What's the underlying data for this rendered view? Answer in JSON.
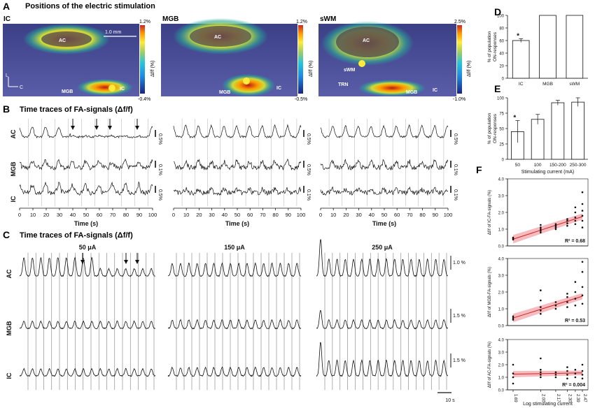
{
  "panels": {
    "A": {
      "letter": "A",
      "title": "Positions of the electric stimulation",
      "subpanels": [
        {
          "label": "IC",
          "scale_top": "1.2%",
          "scale_bottom": "-0.4%",
          "regions": [
            "AC",
            "MGB",
            "IC"
          ],
          "extra": "1.0 mm"
        },
        {
          "label": "MGB",
          "scale_top": "1.2%",
          "scale_bottom": "-0.5%",
          "regions": [
            "AC",
            "MGB",
            "IC"
          ]
        },
        {
          "label": "sWM",
          "scale_top": "2.5%",
          "scale_bottom": "-1.0%",
          "regions": [
            "AC",
            "sWM",
            "TRN",
            "MGB",
            "IC"
          ]
        }
      ],
      "colorbar_label": "Δf/f (%)",
      "axes_letters": [
        "L",
        "C"
      ]
    },
    "B": {
      "letter": "B",
      "title": "Time traces of FA-signals (Δf/f)",
      "rows": [
        "AC",
        "MGB",
        "IC"
      ],
      "scales": [
        [
          "0.5%",
          "0.1%",
          "0.5%"
        ],
        [
          "0.5%",
          "0.5%",
          "0.1%"
        ],
        [
          "0.5%",
          "0.1%",
          "0.1%"
        ]
      ],
      "xlabel": "Time (s)",
      "ticks": [
        "0",
        "10",
        "20",
        "30",
        "40",
        "50",
        "60",
        "70",
        "80",
        "90",
        "100"
      ]
    },
    "C": {
      "letter": "C",
      "title": "Time traces of FA-signals (Δf/f)",
      "columns": [
        "50 μA",
        "150 μA",
        "250 μA"
      ],
      "rows": [
        "AC",
        "MGB",
        "IC"
      ],
      "scales": [
        "1.0 %",
        "1.5 %",
        "1.5 %"
      ],
      "time_scale": "10 s"
    },
    "D": {
      "letter": "D"
    },
    "E": {
      "letter": "E"
    },
    "F": {
      "letter": "F"
    }
  },
  "chart_data": [
    {
      "type": "bar",
      "id": "D",
      "categories": [
        "IC",
        "MGB",
        "sWM"
      ],
      "values": [
        60,
        100,
        100
      ],
      "errors": [
        3,
        0,
        0
      ],
      "annotations": [
        "*",
        "",
        ""
      ],
      "ylabel": "% of population ON-responses",
      "ylim": [
        0,
        100
      ],
      "yticks": [
        "0",
        "20",
        "40",
        "60",
        "80",
        "100"
      ]
    },
    {
      "type": "bar",
      "id": "E",
      "categories": [
        "50",
        "100",
        "150-200",
        "250-300"
      ],
      "values": [
        45,
        65,
        92,
        93
      ],
      "errors": [
        18,
        8,
        4,
        7
      ],
      "annotations": [
        "*",
        "",
        "",
        ""
      ],
      "xlabel": "Stimulating current (mA)",
      "ylabel": "% of population ON-responses",
      "ylim": [
        0,
        100
      ],
      "yticks": [
        "0",
        "25",
        "50",
        "75",
        "100"
      ]
    },
    {
      "type": "scatter",
      "id": "F1",
      "ylabel": "Δf/f of IC-FA-signals (%)",
      "ylim": [
        0,
        4
      ],
      "yticks": [
        "0.0",
        "1.0",
        "2.0",
        "3.0",
        "4.0"
      ],
      "x": [
        1.69,
        2.0,
        2.17,
        2.3,
        2.39,
        2.47
      ],
      "points": [
        [
          1.69,
          0.38
        ],
        [
          1.69,
          0.45
        ],
        [
          1.69,
          0.5
        ],
        [
          2.0,
          0.8
        ],
        [
          2.0,
          0.9
        ],
        [
          2.0,
          1.0
        ],
        [
          2.0,
          1.1
        ],
        [
          2.0,
          1.25
        ],
        [
          2.17,
          1.0
        ],
        [
          2.17,
          1.1
        ],
        [
          2.17,
          1.2
        ],
        [
          2.17,
          1.3
        ],
        [
          2.3,
          1.2
        ],
        [
          2.3,
          1.35
        ],
        [
          2.3,
          1.5
        ],
        [
          2.3,
          1.6
        ],
        [
          2.39,
          1.3
        ],
        [
          2.39,
          1.5
        ],
        [
          2.39,
          1.7
        ],
        [
          2.39,
          2.0
        ],
        [
          2.39,
          2.3
        ],
        [
          2.47,
          1.1
        ],
        [
          2.47,
          1.5
        ],
        [
          2.47,
          1.8
        ],
        [
          2.47,
          2.1
        ],
        [
          2.47,
          2.5
        ],
        [
          2.47,
          3.2
        ]
      ],
      "fit": [
        [
          1.69,
          0.4
        ],
        [
          2.47,
          1.75
        ]
      ],
      "r2": "R² = 0.68"
    },
    {
      "type": "scatter",
      "id": "F2",
      "ylabel": "Δf/f of MGB-FA-signals (%)",
      "ylim": [
        0,
        4
      ],
      "yticks": [
        "0.0",
        "1.0",
        "2.0",
        "3.0",
        "4.0"
      ],
      "x": [
        1.69,
        2.0,
        2.17,
        2.3,
        2.39,
        2.47
      ],
      "points": [
        [
          1.69,
          0.35
        ],
        [
          1.69,
          0.45
        ],
        [
          1.69,
          0.55
        ],
        [
          2.0,
          0.7
        ],
        [
          2.0,
          0.9
        ],
        [
          2.0,
          1.1
        ],
        [
          2.0,
          1.5
        ],
        [
          2.0,
          2.1
        ],
        [
          2.17,
          1.0
        ],
        [
          2.17,
          1.2
        ],
        [
          2.17,
          1.4
        ],
        [
          2.3,
          1.1
        ],
        [
          2.3,
          1.4
        ],
        [
          2.3,
          1.7
        ],
        [
          2.3,
          1.9
        ],
        [
          2.39,
          1.2
        ],
        [
          2.39,
          1.6
        ],
        [
          2.39,
          2.0
        ],
        [
          2.39,
          2.6
        ],
        [
          2.47,
          1.3
        ],
        [
          2.47,
          1.8
        ],
        [
          2.47,
          2.3
        ],
        [
          2.47,
          3.2
        ],
        [
          2.47,
          3.8
        ]
      ],
      "fit": [
        [
          1.69,
          0.45
        ],
        [
          2.47,
          1.75
        ]
      ],
      "r2": "R² = 0.53"
    },
    {
      "type": "scatter",
      "id": "F3",
      "ylabel": "Δf/f of AC-FA-signals (%)",
      "ylim": [
        0,
        4
      ],
      "yticks": [
        "0.0",
        "1.0",
        "2.0",
        "3.0",
        "4.0"
      ],
      "xlabel": "Log stimulating current",
      "xticks": [
        "1.69",
        "2.00",
        "2.17",
        "2.30",
        "2.39",
        "2.47"
      ],
      "x": [
        1.69,
        2.0,
        2.17,
        2.3,
        2.39,
        2.47
      ],
      "points": [
        [
          1.69,
          0.5
        ],
        [
          1.69,
          1.0
        ],
        [
          1.69,
          1.3
        ],
        [
          1.69,
          2.0
        ],
        [
          2.0,
          1.0
        ],
        [
          2.0,
          1.2
        ],
        [
          2.0,
          1.4
        ],
        [
          2.0,
          1.6
        ],
        [
          2.0,
          2.5
        ],
        [
          2.17,
          1.0
        ],
        [
          2.17,
          1.2
        ],
        [
          2.17,
          1.4
        ],
        [
          2.3,
          0.9
        ],
        [
          2.3,
          1.2
        ],
        [
          2.3,
          1.5
        ],
        [
          2.3,
          1.8
        ],
        [
          2.39,
          1.0
        ],
        [
          2.39,
          1.3
        ],
        [
          2.39,
          1.6
        ],
        [
          2.47,
          0.9
        ],
        [
          2.47,
          1.2
        ],
        [
          2.47,
          1.5
        ],
        [
          2.47,
          2.0
        ]
      ],
      "fit": [
        [
          1.69,
          1.25
        ],
        [
          2.47,
          1.35
        ]
      ],
      "r2": "R² = 0.004"
    }
  ]
}
